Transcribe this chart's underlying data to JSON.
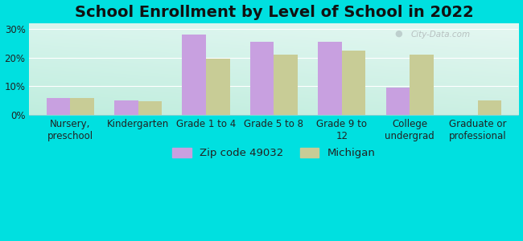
{
  "title": "School Enrollment by Level of School in 2022",
  "categories": [
    "Nursery,\npreschool",
    "Kindergarten",
    "Grade 1 to 4",
    "Grade 5 to 8",
    "Grade 9 to\n12",
    "College\nundergrad",
    "Graduate or\nprofessional"
  ],
  "zip_values": [
    6.0,
    5.0,
    28.0,
    25.5,
    25.5,
    9.5,
    0.0
  ],
  "mi_values": [
    6.0,
    4.8,
    19.5,
    21.0,
    22.5,
    21.0,
    5.0
  ],
  "zip_color": "#c8a0e0",
  "mi_color": "#c8cc96",
  "zip_label": "Zip code 49032",
  "mi_label": "Michigan",
  "background_outer": "#00e0e0",
  "background_inner_top_left": "#c8eedc",
  "background_inner_bottom_right": "#f0f8ec",
  "ylim": [
    0,
    32
  ],
  "yticks": [
    0,
    10,
    20,
    30
  ],
  "ytick_labels": [
    "0%",
    "10%",
    "20%",
    "30%"
  ],
  "title_fontsize": 14,
  "tick_fontsize": 8.5,
  "legend_fontsize": 9.5,
  "bar_width": 0.35,
  "watermark_text": "City-Data.com"
}
